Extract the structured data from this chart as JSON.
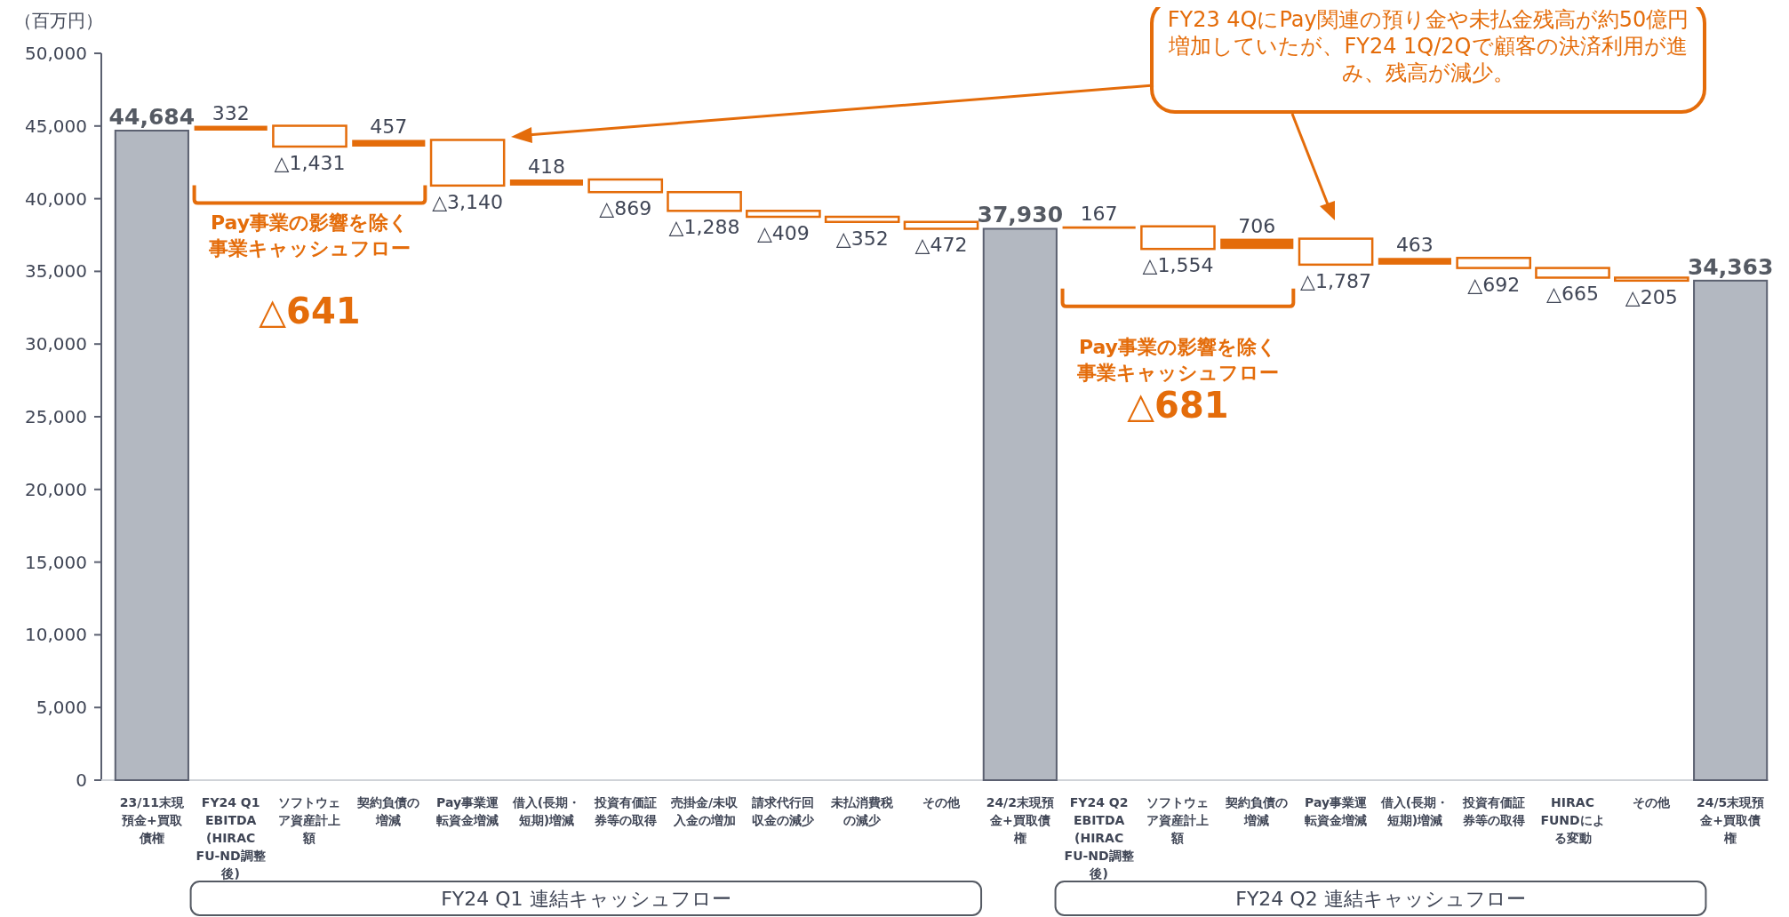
{
  "chart_data": {
    "type": "bar",
    "ylabel": "（百万円）",
    "categories": [
      "23/11末現預金+買取債権",
      "FY24 Q1 EBITDA (HIRAC FU-ND調整後)",
      "ソフトウェア資産計上額",
      "契約負債の増減",
      "Pay事業運転資金増減",
      "借入(長期・短期)増減",
      "投資有価証券等の取得",
      "売掛金/未収入金の増加",
      "請求代行回収金の減少",
      "未払消費税の減少",
      "その他",
      "24/2末現預金+買取債権",
      "FY24 Q2 EBITDA (HIRAC FU-ND調整後)",
      "ソフトウェア資産計上額",
      "契約負債の増減",
      "Pay事業運転資金増減",
      "借入(長期・短期)増減",
      "投資有価証券等の取得",
      "HIRAC FUNDによる変動",
      "その他",
      "24/5末現預金+買取債権"
    ],
    "values": [
      44684,
      332,
      -1431,
      457,
      -3140,
      418,
      -869,
      -1288,
      -409,
      -352,
      -472,
      37930,
      167,
      -1554,
      706,
      -1787,
      463,
      -692,
      -665,
      -205,
      34363
    ],
    "base": [
      0,
      44684,
      45016,
      43585,
      44042,
      40902,
      41320,
      40451,
      39163,
      38754,
      38402,
      0,
      37930,
      38097,
      36543,
      37249,
      35462,
      35925,
      35233,
      34568,
      0
    ],
    "colors": [
      "#b3b8c1",
      "#e46c0a",
      "#e46c0a",
      "#e46c0a",
      "#e46c0a",
      "#e46c0a",
      "#e46c0a",
      "#e46c0a",
      "#e46c0a",
      "#e46c0a",
      "#e46c0a",
      "#b3b8c1",
      "#e46c0a",
      "#e46c0a",
      "#e46c0a",
      "#e46c0a",
      "#e46c0a",
      "#e46c0a",
      "#e46c0a",
      "#e46c0a",
      "#b3b8c1"
    ],
    "value_labels": [
      "44,684",
      "332",
      "△1,431",
      "457",
      "△3,140",
      "418",
      "△869",
      "△1,288",
      "△409",
      "△352",
      "△472",
      "37,930",
      "167",
      "△1,554",
      "706",
      "△1,787",
      "463",
      "△692",
      "△665",
      "△205",
      "34,363"
    ],
    "ylim": [
      0,
      50000
    ],
    "yticks": [
      {
        "value": 0,
        "label": "0"
      },
      {
        "value": 5000,
        "label": "5,000"
      },
      {
        "value": 10000,
        "label": "10,000"
      },
      {
        "value": 15000,
        "label": "15,000"
      },
      {
        "value": 20000,
        "label": "20,000"
      },
      {
        "value": 25000,
        "label": "25,000"
      },
      {
        "value": 30000,
        "label": "30,000"
      },
      {
        "value": 35000,
        "label": "35,000"
      },
      {
        "value": 40000,
        "label": "40,000"
      },
      {
        "value": 45000,
        "label": "45,000"
      },
      {
        "value": 50000,
        "label": "50,000"
      }
    ],
    "annotations": [
      "FY23 4QにPay関連の預り金や未払金残高が約50億円増加していたが、FY24 1Q/2Qで顧客の決済利用が進み、残高が減少。",
      "Pay事業の影響を除く事業キャッシュフロー",
      "△641",
      "Pay事業の影響を除く事業キャッシュフロー",
      "△681",
      "FY24 Q1 連結キャッシュフロー",
      "FY24 Q2 連結キャッシュフロー"
    ],
    "grid": false
  }
}
